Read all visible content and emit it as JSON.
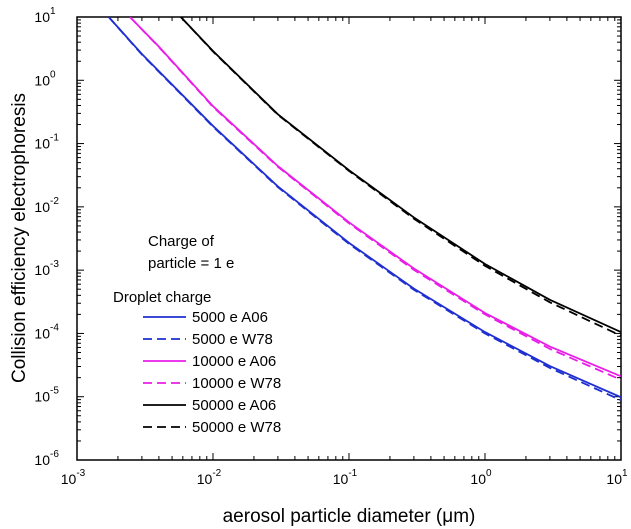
{
  "chart_data": {
    "type": "line",
    "title": "",
    "xlabel_prefix": "aerosol particle diameter (",
    "xlabel_unit": "μm",
    "xlabel_suffix": ")",
    "ylabel": "Collision efficiency electrophoresis",
    "x_scale": "log",
    "y_scale": "log",
    "xlim": [
      0.001,
      10
    ],
    "ylim": [
      1e-06,
      10
    ],
    "x_ticks": [
      {
        "base": "10",
        "exp": "-3",
        "value": 0.001
      },
      {
        "base": "10",
        "exp": "-2",
        "value": 0.01
      },
      {
        "base": "10",
        "exp": "-1",
        "value": 0.1
      },
      {
        "base": "10",
        "exp": "0",
        "value": 1
      },
      {
        "base": "10",
        "exp": "1",
        "value": 10
      }
    ],
    "y_ticks": [
      {
        "base": "10",
        "exp": "-6",
        "value": 1e-06
      },
      {
        "base": "10",
        "exp": "-5",
        "value": 1e-05
      },
      {
        "base": "10",
        "exp": "-4",
        "value": 0.0001
      },
      {
        "base": "10",
        "exp": "-3",
        "value": 0.001
      },
      {
        "base": "10",
        "exp": "-2",
        "value": 0.01
      },
      {
        "base": "10",
        "exp": "-1",
        "value": 0.1
      },
      {
        "base": "10",
        "exp": "0",
        "value": 1
      },
      {
        "base": "10",
        "exp": "1",
        "value": 10
      }
    ],
    "grid": false,
    "legend_position": "bottom-left",
    "annotation_lines": [
      "Charge of",
      "particle = 1 e"
    ],
    "legend_title": "Droplet charge",
    "series": [
      {
        "name": "5000 e A06",
        "color": "#1f2fd1",
        "dash": "solid",
        "x": [
          0.00171,
          0.003,
          0.01,
          0.03,
          0.1,
          0.3,
          1,
          3,
          10
        ],
        "y": [
          10,
          2.6,
          0.19,
          0.021,
          0.0027,
          0.00051,
          0.000105,
          3.05e-05,
          9.8e-06
        ]
      },
      {
        "name": "5000 e W78",
        "color": "#1f2fd1",
        "dash": "dashed",
        "x": [
          0.00171,
          0.003,
          0.01,
          0.03,
          0.1,
          0.3,
          1,
          3,
          10
        ],
        "y": [
          10,
          2.55,
          0.185,
          0.0205,
          0.0026,
          0.00049,
          0.0001,
          2.85e-05,
          8.8e-06
        ]
      },
      {
        "name": "10000 e A06",
        "color": "#e81ee8",
        "dash": "solid",
        "x": [
          0.00245,
          0.004,
          0.01,
          0.03,
          0.1,
          0.3,
          1,
          3,
          10
        ],
        "y": [
          10,
          3.4,
          0.39,
          0.044,
          0.0057,
          0.00106,
          0.00021,
          6.2e-05,
          2.1e-05
        ]
      },
      {
        "name": "10000 e W78",
        "color": "#e81ee8",
        "dash": "dashed",
        "x": [
          0.00245,
          0.004,
          0.01,
          0.03,
          0.1,
          0.3,
          1,
          3,
          10
        ],
        "y": [
          10,
          3.35,
          0.38,
          0.043,
          0.0055,
          0.00101,
          0.0002,
          5.7e-05,
          1.85e-05
        ]
      },
      {
        "name": "50000 e A06",
        "color": "#000000",
        "dash": "solid",
        "x": [
          0.0058,
          0.01,
          0.03,
          0.1,
          0.3,
          1,
          3,
          10
        ],
        "y": [
          10,
          2.9,
          0.29,
          0.038,
          0.0068,
          0.00125,
          0.00034,
          0.000105
        ]
      },
      {
        "name": "50000 e W78",
        "color": "#000000",
        "dash": "dashed",
        "x": [
          0.0058,
          0.01,
          0.03,
          0.1,
          0.3,
          1,
          3,
          10
        ],
        "y": [
          10,
          2.85,
          0.285,
          0.037,
          0.0065,
          0.00117,
          0.00031,
          9.2e-05
        ]
      }
    ]
  }
}
